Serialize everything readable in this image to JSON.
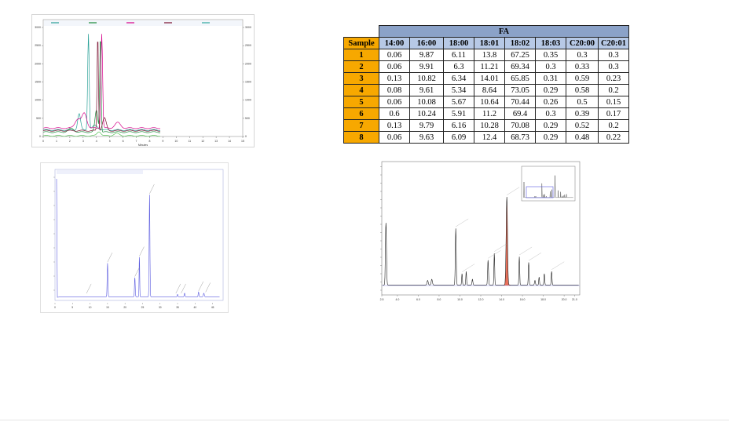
{
  "table": {
    "group_header": "FA",
    "sample_header": "Sample",
    "columns": [
      "14:00",
      "16:00",
      "18:00",
      "18:01",
      "18:02",
      "18:03",
      "C20:00",
      "C20:01"
    ],
    "rows": [
      {
        "sample": "1",
        "values": [
          "0.06",
          "9.87",
          "6.11",
          "13.8",
          "67.25",
          "0.35",
          "0.3",
          "0.3"
        ]
      },
      {
        "sample": "2",
        "values": [
          "0.06",
          "9.91",
          "6.3",
          "11.21",
          "69.34",
          "0.3",
          "0.33",
          "0.3"
        ]
      },
      {
        "sample": "3",
        "values": [
          "0.13",
          "10.82",
          "6.34",
          "14.01",
          "65.85",
          "0.31",
          "0.59",
          "0.23"
        ]
      },
      {
        "sample": "4",
        "values": [
          "0.08",
          "9.61",
          "5.34",
          "8.64",
          "73.05",
          "0.29",
          "0.58",
          "0.2"
        ]
      },
      {
        "sample": "5",
        "values": [
          "0.06",
          "10.08",
          "5.67",
          "10.64",
          "70.44",
          "0.26",
          "0.5",
          "0.15"
        ]
      },
      {
        "sample": "6",
        "values": [
          "0.6",
          "10.24",
          "5.91",
          "11.2",
          "69.4",
          "0.3",
          "0.39",
          "0.17"
        ]
      },
      {
        "sample": "7",
        "values": [
          "0.13",
          "9.79",
          "6.16",
          "10.28",
          "70.08",
          "0.29",
          "0.52",
          "0.2"
        ]
      },
      {
        "sample": "8",
        "values": [
          "0.06",
          "9.63",
          "6.09",
          "12.4",
          "68.73",
          "0.29",
          "0.48",
          "0.22"
        ]
      }
    ]
  },
  "colors": {
    "fa_header": "#8ba2c8",
    "column_header": "#b7c9e6",
    "sample_highlight": "#f7a800",
    "highlight_peak": "#e8705a",
    "trace_blue": "#5b5be0"
  },
  "charts": {
    "overlay": {
      "x_ticks": [
        "0",
        "1",
        "2",
        "3",
        "4",
        "5",
        "6",
        "7",
        "8",
        "9",
        "10",
        "11",
        "12",
        "13",
        "14",
        "15"
      ],
      "y_ticks": [
        "0",
        "500",
        "1000",
        "1500",
        "2000",
        "2500",
        "3000"
      ],
      "xlabel": "Minutes"
    },
    "chromatogram_blue": {
      "x_ticks": [
        "0",
        "5",
        "10",
        "15",
        "20",
        "25",
        "30",
        "35",
        "40",
        "45"
      ]
    },
    "chromatogram_gc": {
      "x_ticks": [
        "2.5",
        "4.0",
        "6.0",
        "8.0",
        "10.0",
        "12.0",
        "14.0",
        "16.0",
        "18.0",
        "20.0",
        "21.0"
      ]
    }
  }
}
